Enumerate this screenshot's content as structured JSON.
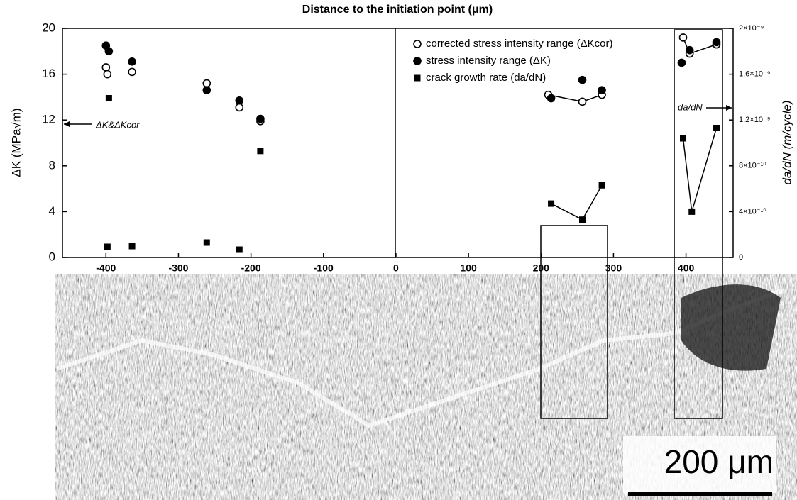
{
  "chart_data": {
    "type": "scatter",
    "title": "Distance to the initiation point (μm)",
    "y_label": "ΔK (MPa√m)",
    "y2_label": "da/dN (m/cycle)",
    "xlim": [
      -460,
      465
    ],
    "xticks": [
      -400,
      -300,
      -200,
      -100,
      0,
      100,
      200,
      300,
      400
    ],
    "ylim": [
      0,
      20
    ],
    "yticks": [
      0,
      4,
      8,
      12,
      16,
      20
    ],
    "y2lim": [
      0,
      2e-09
    ],
    "y2ticks": [
      {
        "value": 0,
        "label": "0"
      },
      {
        "value": 4e-10,
        "label": "4×10⁻¹⁰"
      },
      {
        "value": 8e-10,
        "label": "8×10⁻¹⁰"
      },
      {
        "value": 1.2e-09,
        "label": "1.2×10⁻⁹"
      },
      {
        "value": 1.6e-09,
        "label": "1.6×10⁻⁹"
      },
      {
        "value": 2e-09,
        "label": "2×10⁻⁹"
      }
    ],
    "legend": "top",
    "series": [
      {
        "name": "corrected stress intensity range (ΔKcor)",
        "color": "#000000",
        "marker": "open-circle",
        "line": true,
        "x": [
          -400,
          null,
          -398,
          null,
          -364,
          null,
          -261,
          null,
          -216,
          null,
          -187,
          null,
          210,
          257,
          284,
          null,
          396,
          405,
          442
        ],
        "values": [
          16.6,
          null,
          16.0,
          null,
          16.2,
          null,
          15.2,
          null,
          13.1,
          null,
          11.9,
          null,
          14.2,
          13.6,
          14.2,
          null,
          19.2,
          17.8,
          18.6
        ]
      },
      {
        "name": "stress intensity range (ΔK)",
        "color": "#000000",
        "marker": "circle",
        "line": false,
        "x": [
          -400,
          -396,
          -364,
          -261,
          -216,
          -187,
          214,
          257,
          284,
          394,
          405,
          442
        ],
        "values": [
          18.5,
          18.0,
          17.1,
          14.6,
          13.7,
          12.1,
          13.9,
          15.5,
          14.6,
          17.0,
          18.1,
          18.8
        ]
      },
      {
        "name": "crack growth rate (da/dN)",
        "color": "#000000",
        "marker": "square",
        "line": true,
        "axis": "y2",
        "x": [
          -396,
          null,
          -187,
          null,
          -398,
          null,
          -364,
          null,
          -261,
          null,
          -216,
          null,
          214,
          257,
          284,
          null,
          396,
          408,
          442
        ],
        "values": [
          1.39e-09,
          null,
          9.3e-10,
          null,
          9.3e-11,
          null,
          9.9e-11,
          null,
          1.3e-10,
          null,
          6.8e-11,
          null,
          4.7e-10,
          3.3e-10,
          6.3e-10,
          null,
          1.04e-09,
          4e-10,
          1.13e-09
        ]
      }
    ],
    "annotations": [
      "ΔK&ΔKcor",
      "da/dN"
    ],
    "scale_bar": "200 μm"
  }
}
